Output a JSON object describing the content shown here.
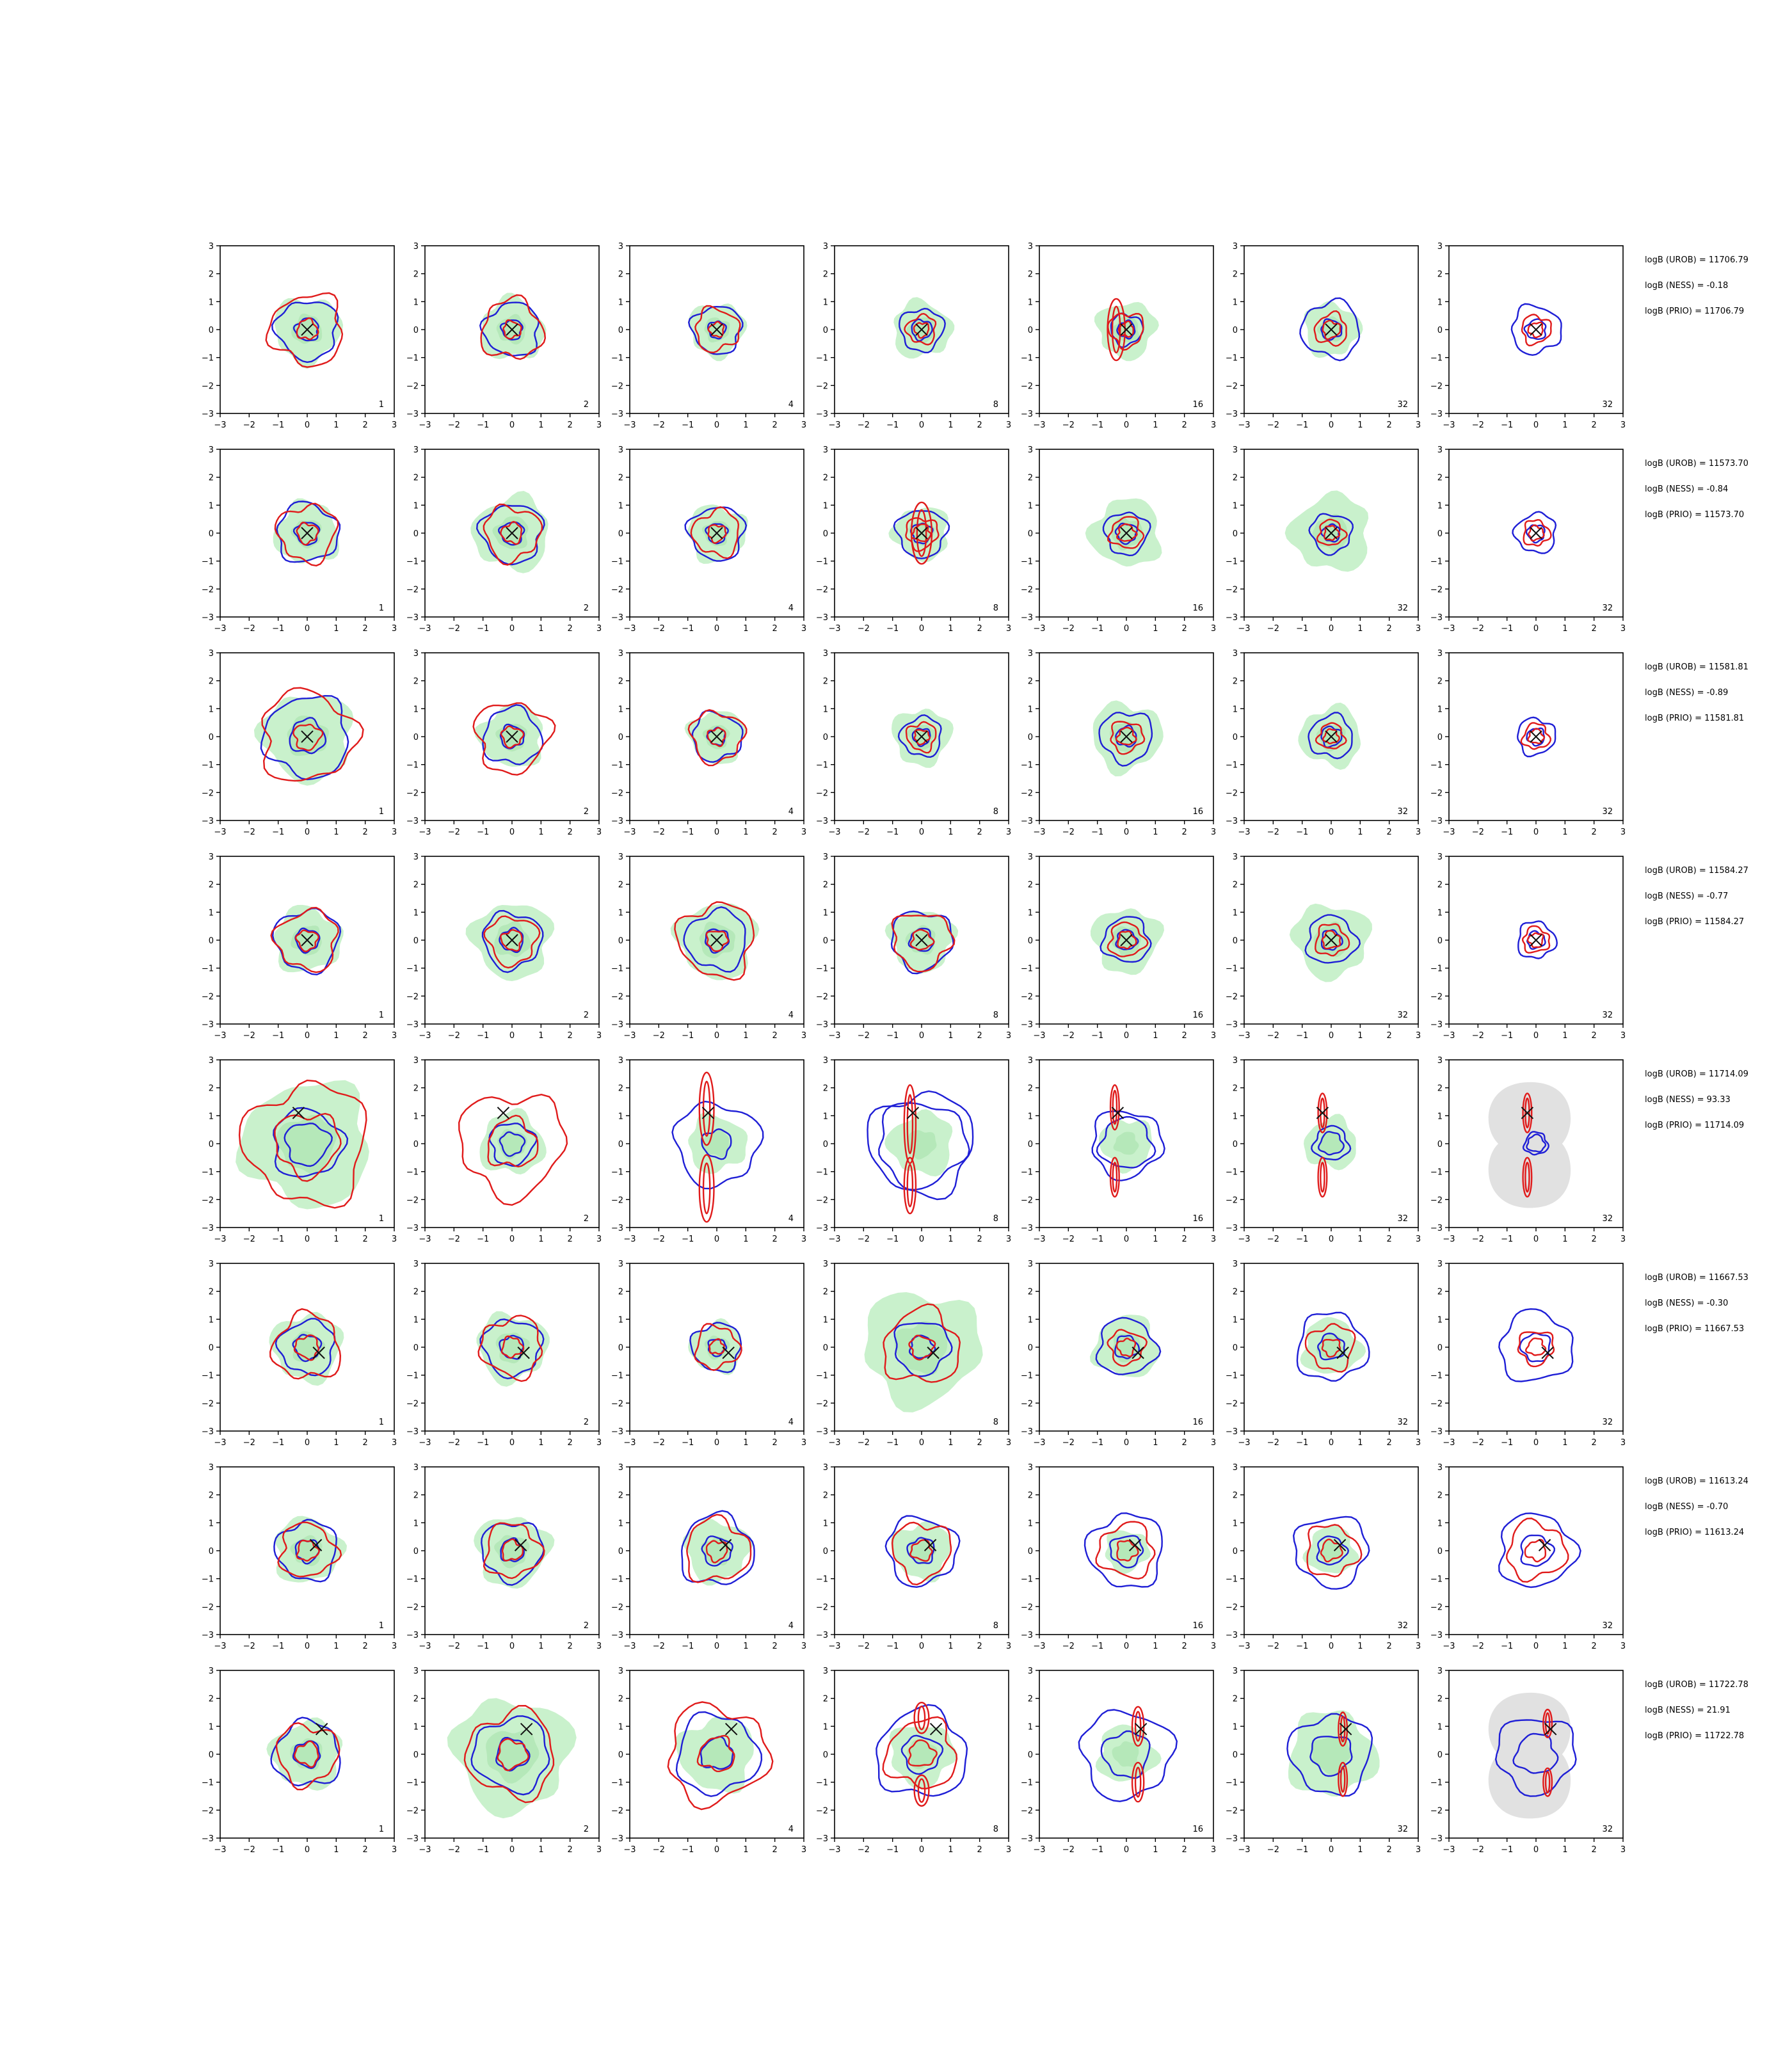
{
  "chart_data": {
    "type": "contour-grid",
    "rows": 8,
    "cols": 7,
    "xlim": [
      -3,
      3
    ],
    "ylim": [
      -3,
      3
    ],
    "ticks": [
      -3,
      -2,
      -1,
      0,
      1,
      2,
      3
    ],
    "tick_labels": [
      "−3",
      "−2",
      "−1",
      "0",
      "1",
      "2",
      "3"
    ],
    "col_counts": [
      "1",
      "2",
      "4",
      "8",
      "16",
      "32",
      "32"
    ],
    "colors": {
      "fill": "#c9f1cc",
      "fill_gray": "#dcdcdc",
      "blue": "#1f1fd6",
      "red": "#e01b1b",
      "marker": "#111111"
    },
    "rows_data": [
      {
        "marker": [
          0,
          0
        ],
        "stats": [
          "logB (UROB) = 11706.79",
          "logB (NESS) = -0.18",
          "logB (PRIO) = 11706.79"
        ]
      },
      {
        "marker": [
          0,
          0
        ],
        "stats": [
          "logB (UROB) = 11573.70",
          "logB (NESS) = -0.84",
          "logB (PRIO) = 11573.70"
        ]
      },
      {
        "marker": [
          0,
          0
        ],
        "stats": [
          "logB (UROB) = 11581.81",
          "logB (NESS) = -0.89",
          "logB (PRIO) = 11581.81"
        ]
      },
      {
        "marker": [
          0,
          0
        ],
        "stats": [
          "logB (UROB) = 11584.27",
          "logB (NESS) = -0.77",
          "logB (PRIO) = 11584.27"
        ]
      },
      {
        "marker": [
          -0.3,
          1.1
        ],
        "stats": [
          "logB (UROB) = 11714.09",
          "logB (NESS) = 93.33",
          "logB (PRIO) = 11714.09"
        ]
      },
      {
        "marker": [
          0.4,
          -0.2
        ],
        "stats": [
          "logB (UROB) = 11667.53",
          "logB (NESS) = -0.30",
          "logB (PRIO) = 11667.53"
        ]
      },
      {
        "marker": [
          0.3,
          0.2
        ],
        "stats": [
          "logB (UROB) = 11613.24",
          "logB (NESS) = -0.70",
          "logB (PRIO) = 11613.24"
        ]
      },
      {
        "marker": [
          0.5,
          0.9
        ],
        "stats": [
          "logB (UROB) = 11722.78",
          "logB (NESS) = 21.91",
          "logB (PRIO) = 11722.78"
        ]
      }
    ],
    "panels": [
      [
        {
          "fill": 1.15,
          "blue": [
            1.05,
            0.4
          ],
          "red": [
            1.25,
            0.35
          ]
        },
        {
          "fill": 1.1,
          "blue": [
            0.95,
            0.35
          ],
          "red": [
            1.05,
            0.3
          ]
        },
        {
          "fill": 0.95,
          "blue": [
            0.85,
            0.3
          ],
          "red": [
            0.75,
            0.25
          ]
        },
        {
          "fill": 1.0,
          "blue": [
            0.75,
            0.35
          ],
          "red": [
            0.5,
            0.25
          ]
        },
        {
          "fill": 1.0,
          "blue": [
            0.55,
            0.3
          ],
          "red": [
            0.6,
            0.25
          ],
          "redv": [
            [
              -0.35,
              0,
              0.3,
              1.1
            ]
          ]
        },
        {
          "fill": 0.95,
          "blue": [
            1.0,
            0.35
          ],
          "red": [
            0.55,
            0.3
          ]
        },
        {
          "fill": 0.0,
          "blue": [
            0.85,
            0.35
          ],
          "red": [
            0.5,
            0.25
          ]
        }
      ],
      [
        {
          "fill": 1.1,
          "blue": [
            1.05,
            0.4
          ],
          "red": [
            1.0,
            0.35
          ]
        },
        {
          "fill": 1.3,
          "blue": [
            1.05,
            0.4
          ],
          "red": [
            0.95,
            0.35
          ]
        },
        {
          "fill": 1.0,
          "blue": [
            0.95,
            0.35
          ],
          "red": [
            0.8,
            0.3
          ]
        },
        {
          "fill": 0.95,
          "blue": [
            0.85,
            0.35
          ],
          "red": [
            0.55,
            0.3
          ],
          "redv": [
            [
              0,
              0,
              0.35,
              1.1
            ]
          ]
        },
        {
          "fill": 1.2,
          "blue": [
            0.75,
            0.35
          ],
          "red": [
            0.55,
            0.3
          ]
        },
        {
          "fill": 1.35,
          "blue": [
            0.7,
            0.3
          ],
          "red": [
            0.45,
            0.25
          ]
        },
        {
          "fill": 0.0,
          "blue": [
            0.7,
            0.3
          ],
          "red": [
            0.45,
            0.25
          ]
        }
      ],
      [
        {
          "fill": 1.55,
          "blue": [
            1.45,
            0.6
          ],
          "red": [
            1.6,
            0.45
          ]
        },
        {
          "fill": 1.1,
          "blue": [
            1.0,
            0.4
          ],
          "red": [
            1.25,
            0.35
          ]
        },
        {
          "fill": 0.95,
          "blue": [
            0.85,
            0.3
          ],
          "red": [
            0.9,
            0.3
          ]
        },
        {
          "fill": 1.0,
          "blue": [
            0.7,
            0.3
          ],
          "red": [
            0.5,
            0.25
          ]
        },
        {
          "fill": 1.2,
          "blue": [
            0.9,
            0.35
          ],
          "red": [
            0.55,
            0.3
          ]
        },
        {
          "fill": 1.05,
          "blue": [
            0.75,
            0.35
          ],
          "red": [
            0.45,
            0.25
          ]
        },
        {
          "fill": 0.0,
          "blue": [
            0.65,
            0.3
          ],
          "red": [
            0.45,
            0.25
          ]
        }
      ],
      [
        {
          "fill": 1.15,
          "blue": [
            1.1,
            0.4
          ],
          "red": [
            1.05,
            0.35
          ]
        },
        {
          "fill": 1.35,
          "blue": [
            1.0,
            0.4
          ],
          "red": [
            0.85,
            0.35
          ]
        },
        {
          "fill": 1.35,
          "blue": [
            1.05,
            0.4
          ],
          "red": [
            1.3,
            0.35
          ]
        },
        {
          "fill": 1.1,
          "blue": [
            1.05,
            0.4
          ],
          "red": [
            1.0,
            0.35
          ]
        },
        {
          "fill": 1.15,
          "blue": [
            0.8,
            0.35
          ],
          "red": [
            0.6,
            0.3
          ]
        },
        {
          "fill": 1.3,
          "blue": [
            0.85,
            0.35
          ],
          "red": [
            0.55,
            0.3
          ]
        },
        {
          "fill": 0.0,
          "blue": [
            0.65,
            0.3
          ],
          "red": [
            0.45,
            0.25
          ]
        }
      ],
      [
        {
          "fill": 2.2,
          "blue": [
            1.2,
            0.75
          ],
          "red": [
            2.1,
            1.1
          ]
        },
        {
          "fill": 1.1,
          "blue": [
            0.75,
            0.4
          ],
          "red": [
            1.8,
            0.85
          ]
        },
        {
          "fill": 1.0,
          "blue": [
            1.45,
            0.5
          ],
          "redv": [
            [
              -0.35,
              1.25,
              0.25,
              1.3
            ],
            [
              -0.35,
              -1.6,
              0.25,
              1.2
            ]
          ]
        },
        {
          "fill": 1.1,
          "blue": [
            1.8,
            1.5
          ],
          "redv": [
            [
              -0.4,
              0.7,
              0.2,
              1.4
            ],
            [
              -0.4,
              -1.5,
              0.2,
              1.0
            ]
          ]
        },
        {
          "fill": 0.9,
          "blue": [
            1.2,
            0.9
          ],
          "redv": [
            [
              -0.4,
              1.3,
              0.15,
              0.8
            ],
            [
              -0.4,
              -1.2,
              0.15,
              0.7
            ]
          ]
        },
        {
          "fill": 0.9,
          "blue": [
            0.6,
            0.4
          ],
          "redv": [
            [
              -0.3,
              1.1,
              0.15,
              0.7
            ],
            [
              -0.3,
              -1.2,
              0.15,
              0.7
            ]
          ]
        },
        {
          "fill": 0.0,
          "gray": true,
          "blue": [
            0.4,
            0.3
          ],
          "redv": [
            [
              -0.3,
              1.1,
              0.15,
              0.7
            ],
            [
              -0.3,
              -1.2,
              0.15,
              0.7
            ]
          ]
        }
      ],
      [
        {
          "fill": 1.2,
          "blue": [
            0.95,
            0.45
          ],
          "red": [
            1.15,
            0.4
          ]
        },
        {
          "fill": 1.2,
          "blue": [
            1.0,
            0.4
          ],
          "red": [
            1.05,
            0.35
          ]
        },
        {
          "fill": 0.9,
          "blue": [
            0.85,
            0.3
          ],
          "red": [
            0.75,
            0.25
          ]
        },
        {
          "fill": 2.0,
          "blue": [
            0.95,
            0.4
          ],
          "red": [
            1.3,
            0.4
          ]
        },
        {
          "fill": 1.1,
          "blue": [
            1.0,
            0.4
          ],
          "red": [
            0.6,
            0.3
          ]
        },
        {
          "fill": 1.0,
          "blue": [
            1.2,
            0.45
          ],
          "red": [
            0.8,
            0.3
          ]
        },
        {
          "fill": 0.0,
          "blue": [
            1.25,
            0.5
          ],
          "red": [
            0.6,
            0.3
          ]
        }
      ],
      [
        {
          "fill": 1.15,
          "blue": [
            1.05,
            0.4
          ],
          "red": [
            0.95,
            0.35
          ]
        },
        {
          "fill": 1.25,
          "blue": [
            1.05,
            0.4
          ],
          "red": [
            0.95,
            0.35
          ]
        },
        {
          "fill": 1.1,
          "blue": [
            1.25,
            0.5
          ],
          "red": [
            1.1,
            0.35
          ]
        },
        {
          "fill": 1.0,
          "blue": [
            1.2,
            0.45
          ],
          "red": [
            1.0,
            0.35
          ]
        },
        {
          "fill": 0.75,
          "blue": [
            1.3,
            0.55
          ],
          "red": [
            0.95,
            0.35
          ]
        },
        {
          "fill": 0.85,
          "blue": [
            1.25,
            0.5
          ],
          "red": [
            0.9,
            0.35
          ]
        },
        {
          "fill": 0.0,
          "blue": [
            1.3,
            0.55
          ],
          "red": [
            1.0,
            0.35
          ]
        }
      ],
      [
        {
          "fill": 1.2,
          "blue": [
            1.15,
            0.45
          ],
          "red": [
            1.05,
            0.4
          ]
        },
        {
          "fill": 2.0,
          "blue": [
            1.3,
            0.55
          ],
          "red": [
            1.5,
            0.5
          ]
        },
        {
          "fill": 1.3,
          "blue": [
            1.4,
            0.55
          ],
          "red": [
            1.7,
            0.6
          ]
        },
        {
          "fill": 1.1,
          "blue": [
            1.55,
            0.65
          ],
          "red": [
            1.2,
            0.45
          ],
          "redv": [
            [
              0,
              1.3,
              0.25,
              0.55
            ],
            [
              0,
              -1.3,
              0.25,
              0.55
            ]
          ]
        },
        {
          "fill": 1.0,
          "blue": [
            1.55,
            0.8
          ],
          "redv": [
            [
              0.4,
              1.0,
              0.2,
              0.7
            ],
            [
              0.4,
              -1.0,
              0.2,
              0.7
            ]
          ]
        },
        {
          "fill": 1.5,
          "blue": [
            1.4,
            0.7
          ],
          "redv": [
            [
              0.4,
              0.9,
              0.15,
              0.6
            ],
            [
              0.4,
              -0.9,
              0.15,
              0.6
            ]
          ]
        },
        {
          "fill": 0.0,
          "gray": true,
          "blue": [
            1.35,
            0.7
          ],
          "redv": [
            [
              0.4,
              1.1,
              0.15,
              0.5
            ],
            [
              0.4,
              -1.0,
              0.15,
              0.5
            ]
          ]
        }
      ]
    ]
  }
}
